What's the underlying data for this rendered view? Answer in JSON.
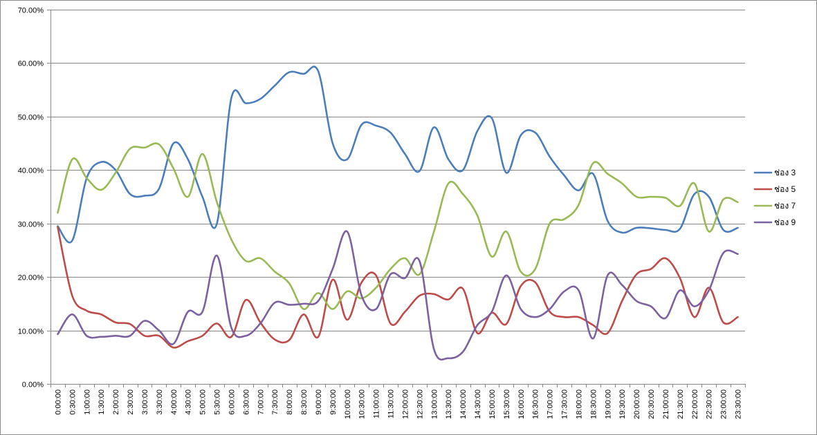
{
  "chart_data": {
    "type": "line",
    "title": "",
    "xlabel": "",
    "ylabel": "",
    "ylim": [
      0,
      70
    ],
    "y_tick_step": 10,
    "y_tick_format": "percent-2dp",
    "grid": "horizontal",
    "legend_position": "right",
    "smooth": true,
    "x": [
      "0:00:00",
      "0:30:00",
      "1:00:00",
      "1:30:00",
      "2:00:00",
      "2:30:00",
      "3:00:00",
      "3:30:00",
      "4:00:00",
      "4:30:00",
      "5:00:00",
      "5:30:00",
      "6:00:00",
      "6:30:00",
      "7:00:00",
      "7:30:00",
      "8:00:00",
      "8:30:00",
      "9:00:00",
      "9:30:00",
      "10:00:00",
      "10:30:00",
      "11:00:00",
      "11:30:00",
      "12:00:00",
      "12:30:00",
      "13:00:00",
      "13:30:00",
      "14:00:00",
      "14:30:00",
      "15:00:00",
      "15:30:00",
      "16:00:00",
      "16:30:00",
      "17:00:00",
      "17:30:00",
      "18:00:00",
      "18:30:00",
      "19:00:00",
      "19:30:00",
      "20:00:00",
      "20:30:00",
      "21:00:00",
      "21:30:00",
      "22:00:00",
      "22:30:00",
      "23:00:00",
      "23:30:00"
    ],
    "series": [
      {
        "name": "ช่อง 3",
        "color": "#4a7ebb",
        "values": [
          29.5,
          26.8,
          38.5,
          41.5,
          40.0,
          35.5,
          35.2,
          36.5,
          45.0,
          42.0,
          35.0,
          30.0,
          53.5,
          52.5,
          53.3,
          55.8,
          58.3,
          58.0,
          58.5,
          45.0,
          42.0,
          48.5,
          48.3,
          47.0,
          43.0,
          39.8,
          48.0,
          42.0,
          40.0,
          47.3,
          49.7,
          39.5,
          46.5,
          47.0,
          42.5,
          39.0,
          36.2,
          39.3,
          30.5,
          28.3,
          29.2,
          29.1,
          28.8,
          29.0,
          35.5,
          35.0,
          28.8,
          29.2
        ]
      },
      {
        "name": "ช่อง 5",
        "color": "#be4b48",
        "values": [
          29.3,
          16.5,
          13.7,
          13.0,
          11.5,
          11.2,
          9.0,
          9.0,
          6.8,
          8.0,
          9.0,
          11.3,
          8.8,
          15.7,
          11.5,
          8.3,
          8.2,
          13.0,
          8.8,
          19.5,
          12.0,
          19.0,
          20.3,
          11.3,
          13.5,
          16.5,
          16.8,
          15.8,
          17.8,
          9.5,
          13.3,
          11.2,
          18.3,
          19.0,
          13.5,
          12.5,
          12.5,
          11.0,
          9.5,
          15.5,
          20.5,
          21.5,
          23.5,
          19.8,
          12.5,
          18.0,
          11.5,
          12.5
        ]
      },
      {
        "name": "ช่อง 7",
        "color": "#98b954",
        "values": [
          32.0,
          42.0,
          38.5,
          36.3,
          39.5,
          44.0,
          44.2,
          44.8,
          40.3,
          35.0,
          43.0,
          34.0,
          27.0,
          23.0,
          23.5,
          21.0,
          18.8,
          14.0,
          17.0,
          14.0,
          17.3,
          16.0,
          18.0,
          21.5,
          23.5,
          20.5,
          28.5,
          37.5,
          35.5,
          31.5,
          23.8,
          28.5,
          21.0,
          21.5,
          30.0,
          30.8,
          33.5,
          41.3,
          39.3,
          37.5,
          35.0,
          35.0,
          34.8,
          33.3,
          37.5,
          28.5,
          34.5,
          34.0
        ]
      },
      {
        "name": "ช่อง 9",
        "color": "#7d60a0",
        "values": [
          9.3,
          13.0,
          9.0,
          8.8,
          9.0,
          9.0,
          11.8,
          10.0,
          7.5,
          13.5,
          13.5,
          24.0,
          10.5,
          9.0,
          11.3,
          15.2,
          14.8,
          15.0,
          15.5,
          21.5,
          28.5,
          16.5,
          14.0,
          20.5,
          19.8,
          23.0,
          6.5,
          4.8,
          6.0,
          11.0,
          13.5,
          20.3,
          14.0,
          12.5,
          14.0,
          17.3,
          17.5,
          8.5,
          20.3,
          18.5,
          15.5,
          14.5,
          12.3,
          17.5,
          14.5,
          17.5,
          24.5,
          24.3
        ]
      }
    ]
  }
}
